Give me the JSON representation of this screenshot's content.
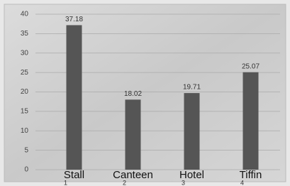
{
  "chart_data": {
    "type": "bar",
    "categories": [
      "Stall",
      "Canteen",
      "Hotel",
      "Tiffin"
    ],
    "category_indices": [
      "1",
      "2",
      "3",
      "4"
    ],
    "values": [
      37.18,
      18.02,
      19.71,
      25.07
    ],
    "color": "#555555",
    "ylim": [
      0,
      40
    ],
    "yticks": [
      0,
      5,
      10,
      15,
      20,
      25,
      30,
      35,
      40
    ],
    "grid": true
  }
}
